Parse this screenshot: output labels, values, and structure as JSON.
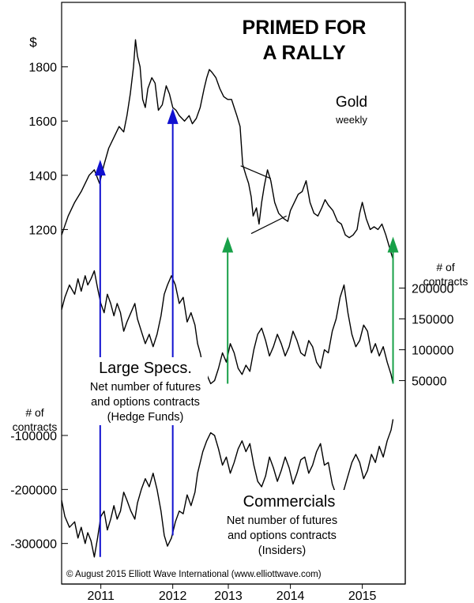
{
  "chart_data": [
    {
      "type": "line",
      "panel": "gold",
      "title": "PRIMED FOR A RALLY",
      "title_lines": [
        "PRIMED FOR",
        "A RALLY"
      ],
      "series_label": "Gold",
      "series_sublabel": "weekly",
      "ylabel": "$",
      "yticks": [
        1200,
        1400,
        1600,
        1800
      ],
      "ylim": [
        1070,
        1930
      ],
      "x": [
        2010.5,
        2010.6,
        2010.7,
        2010.8,
        2010.92,
        2011.0,
        2011.08,
        2011.15,
        2011.22,
        2011.3,
        2011.38,
        2011.45,
        2011.5,
        2011.55,
        2011.6,
        2011.63,
        2011.66,
        2011.7,
        2011.74,
        2011.78,
        2011.82,
        2011.88,
        2011.93,
        2011.98,
        2012.04,
        2012.1,
        2012.15,
        2012.2,
        2012.25,
        2012.3,
        2012.38,
        2012.45,
        2012.5,
        2012.56,
        2012.62,
        2012.68,
        2012.72,
        2012.76,
        2012.8,
        2012.86,
        2012.92,
        2012.98,
        2013.04,
        2013.1,
        2013.14,
        2013.18,
        2013.23,
        2013.27,
        2013.32,
        2013.36,
        2013.4,
        2013.43,
        2013.48,
        2013.52,
        2013.56,
        2013.6,
        2013.65,
        2013.7,
        2013.76,
        2013.82,
        2013.9,
        2013.96,
        2014.0,
        2014.06,
        2014.12,
        2014.18,
        2014.24,
        2014.3,
        2014.36,
        2014.42,
        2014.48,
        2014.53,
        2014.58,
        2014.65,
        2014.72,
        2014.78,
        2014.84,
        2014.9,
        2014.96,
        2015.02,
        2015.06,
        2015.1,
        2015.16,
        2015.22,
        2015.28,
        2015.34,
        2015.4,
        2015.46,
        2015.52,
        2015.57
      ],
      "values": [
        1180,
        1250,
        1300,
        1340,
        1400,
        1420,
        1370,
        1440,
        1500,
        1540,
        1580,
        1560,
        1620,
        1700,
        1800,
        1900,
        1840,
        1800,
        1680,
        1650,
        1720,
        1760,
        1740,
        1640,
        1660,
        1730,
        1700,
        1650,
        1640,
        1620,
        1600,
        1620,
        1590,
        1610,
        1650,
        1720,
        1760,
        1790,
        1780,
        1760,
        1720,
        1690,
        1680,
        1680,
        1650,
        1620,
        1580,
        1440,
        1400,
        1370,
        1320,
        1250,
        1280,
        1220,
        1300,
        1360,
        1420,
        1380,
        1300,
        1260,
        1240,
        1230,
        1270,
        1300,
        1330,
        1340,
        1380,
        1300,
        1260,
        1250,
        1280,
        1310,
        1290,
        1270,
        1230,
        1220,
        1180,
        1170,
        1180,
        1200,
        1260,
        1300,
        1240,
        1200,
        1210,
        1200,
        1220,
        1180,
        1130,
        1090
      ]
    },
    {
      "type": "line",
      "panel": "large-specs",
      "series_label": "Large Specs.",
      "series_desc": [
        "Net number of futures",
        "and options contracts",
        "(Hedge Funds)"
      ],
      "ylabel": "# of contracts",
      "ylabel_lines": [
        "# of",
        "contracts"
      ],
      "yticks": [
        50000,
        100000,
        150000,
        200000
      ],
      "ylim": [
        20000,
        225000
      ],
      "x": [
        2010.5,
        2010.55,
        2010.62,
        2010.7,
        2010.75,
        2010.8,
        2010.86,
        2010.9,
        2010.95,
        2011.0,
        2011.05,
        2011.1,
        2011.15,
        2011.2,
        2011.25,
        2011.3,
        2011.35,
        2011.4,
        2011.45,
        2011.5,
        2011.56,
        2011.62,
        2011.66,
        2011.72,
        2011.78,
        2011.84,
        2011.9,
        2011.96,
        2012.02,
        2012.07,
        2012.12,
        2012.18,
        2012.24,
        2012.3,
        2012.36,
        2012.42,
        2012.48,
        2012.54,
        2012.58,
        2012.62,
        2012.66,
        2012.72,
        2012.78,
        2012.84,
        2012.9,
        2012.96,
        2013.02,
        2013.08,
        2013.14,
        2013.2,
        2013.26,
        2013.32,
        2013.38,
        2013.44,
        2013.5,
        2013.56,
        2013.62,
        2013.68,
        2013.74,
        2013.8,
        2013.86,
        2013.92,
        2013.98,
        2014.04,
        2014.1,
        2014.16,
        2014.22,
        2014.28,
        2014.34,
        2014.4,
        2014.46,
        2014.52,
        2014.58,
        2014.64,
        2014.7,
        2014.76,
        2014.82,
        2014.88,
        2014.94,
        2015.0,
        2015.06,
        2015.12,
        2015.18,
        2015.24,
        2015.3,
        2015.36,
        2015.42,
        2015.48,
        2015.54,
        2015.57
      ],
      "values": [
        165000,
        185000,
        205000,
        190000,
        215000,
        195000,
        220000,
        205000,
        215000,
        228000,
        200000,
        175000,
        160000,
        190000,
        175000,
        155000,
        175000,
        160000,
        130000,
        145000,
        160000,
        175000,
        150000,
        130000,
        110000,
        125000,
        105000,
        125000,
        155000,
        190000,
        205000,
        220000,
        205000,
        175000,
        185000,
        145000,
        160000,
        140000,
        110000,
        95000,
        75000,
        60000,
        45000,
        50000,
        70000,
        95000,
        80000,
        110000,
        95000,
        70000,
        60000,
        75000,
        65000,
        100000,
        125000,
        135000,
        115000,
        90000,
        105000,
        125000,
        110000,
        90000,
        105000,
        130000,
        115000,
        95000,
        90000,
        115000,
        105000,
        80000,
        70000,
        100000,
        95000,
        130000,
        150000,
        185000,
        205000,
        160000,
        125000,
        105000,
        115000,
        140000,
        130000,
        95000,
        110000,
        90000,
        105000,
        80000,
        60000,
        45000
      ]
    },
    {
      "type": "line",
      "panel": "commercials",
      "series_label": "Commercials",
      "series_desc": [
        "Net number of futures",
        "and options contracts",
        "(Insiders)"
      ],
      "ylabel": "# of contracts",
      "ylabel_lines": [
        "# of",
        "contracts"
      ],
      "yticks": [
        -100000,
        -200000,
        -300000
      ],
      "ylim": [
        -340000,
        -40000
      ],
      "x": [
        2010.5,
        2010.55,
        2010.62,
        2010.7,
        2010.75,
        2010.8,
        2010.86,
        2010.9,
        2010.95,
        2011.0,
        2011.05,
        2011.1,
        2011.15,
        2011.2,
        2011.25,
        2011.3,
        2011.35,
        2011.4,
        2011.45,
        2011.5,
        2011.56,
        2011.62,
        2011.66,
        2011.72,
        2011.78,
        2011.84,
        2011.9,
        2011.96,
        2012.02,
        2012.07,
        2012.12,
        2012.18,
        2012.24,
        2012.3,
        2012.36,
        2012.42,
        2012.48,
        2012.54,
        2012.58,
        2012.62,
        2012.66,
        2012.72,
        2012.78,
        2012.84,
        2012.9,
        2012.96,
        2013.02,
        2013.08,
        2013.14,
        2013.2,
        2013.26,
        2013.32,
        2013.38,
        2013.44,
        2013.5,
        2013.56,
        2013.62,
        2013.68,
        2013.74,
        2013.8,
        2013.86,
        2013.92,
        2013.98,
        2014.04,
        2014.1,
        2014.16,
        2014.22,
        2014.28,
        2014.34,
        2014.4,
        2014.46,
        2014.52,
        2014.58,
        2014.64,
        2014.7,
        2014.76,
        2014.82,
        2014.88,
        2014.94,
        2015.0,
        2015.06,
        2015.12,
        2015.18,
        2015.24,
        2015.3,
        2015.36,
        2015.42,
        2015.48,
        2015.54,
        2015.57
      ],
      "values": [
        -220000,
        -250000,
        -270000,
        -260000,
        -290000,
        -270000,
        -300000,
        -280000,
        -295000,
        -325000,
        -290000,
        -250000,
        -240000,
        -275000,
        -255000,
        -230000,
        -255000,
        -240000,
        -205000,
        -220000,
        -240000,
        -255000,
        -225000,
        -200000,
        -180000,
        -195000,
        -170000,
        -200000,
        -240000,
        -285000,
        -305000,
        -290000,
        -260000,
        -240000,
        -245000,
        -210000,
        -230000,
        -205000,
        -170000,
        -150000,
        -130000,
        -110000,
        -95000,
        -100000,
        -125000,
        -155000,
        -140000,
        -170000,
        -150000,
        -125000,
        -110000,
        -130000,
        -115000,
        -155000,
        -185000,
        -195000,
        -175000,
        -140000,
        -160000,
        -185000,
        -165000,
        -140000,
        -160000,
        -190000,
        -170000,
        -145000,
        -140000,
        -170000,
        -155000,
        -130000,
        -115000,
        -155000,
        -150000,
        -190000,
        -210000,
        -225000,
        -200000,
        -175000,
        -150000,
        -135000,
        -150000,
        -180000,
        -165000,
        -135000,
        -150000,
        -120000,
        -140000,
        -110000,
        -90000,
        -70000
      ]
    }
  ],
  "x_axis": {
    "ticks": [
      "2011",
      "2012",
      "2013",
      "2014",
      "2015"
    ],
    "tick_values": [
      2011.1,
      2012.2,
      2013.05,
      2014.0,
      2015.1
    ]
  },
  "triangle": {
    "upper": {
      "from": [
        2013.24,
        1435
      ],
      "to": [
        2013.7,
        1388
      ]
    },
    "lower": {
      "from": [
        2013.4,
        1185
      ],
      "to": [
        2013.94,
        1250
      ]
    }
  },
  "arrows": [
    {
      "color": "#1010d0",
      "x": 2011.09,
      "from_y_value": -325000,
      "to_gold_value": 1440
    },
    {
      "color": "#1010d0",
      "x": 2012.2,
      "from_y_value": -285000,
      "to_gold_value": 1630
    },
    {
      "color": "#18a048",
      "x": 2013.04,
      "from_specs_value": 45000
    },
    {
      "color": "#18a048",
      "x": 2015.57,
      "from_specs_value": 45000
    }
  ],
  "colors": {
    "line": "#000000",
    "blue_arrow": "#1010d0",
    "green_arrow": "#18a048"
  },
  "footer": {
    "copyright": "© August 2015 Elliott Wave International (www.elliottwave.com)"
  }
}
